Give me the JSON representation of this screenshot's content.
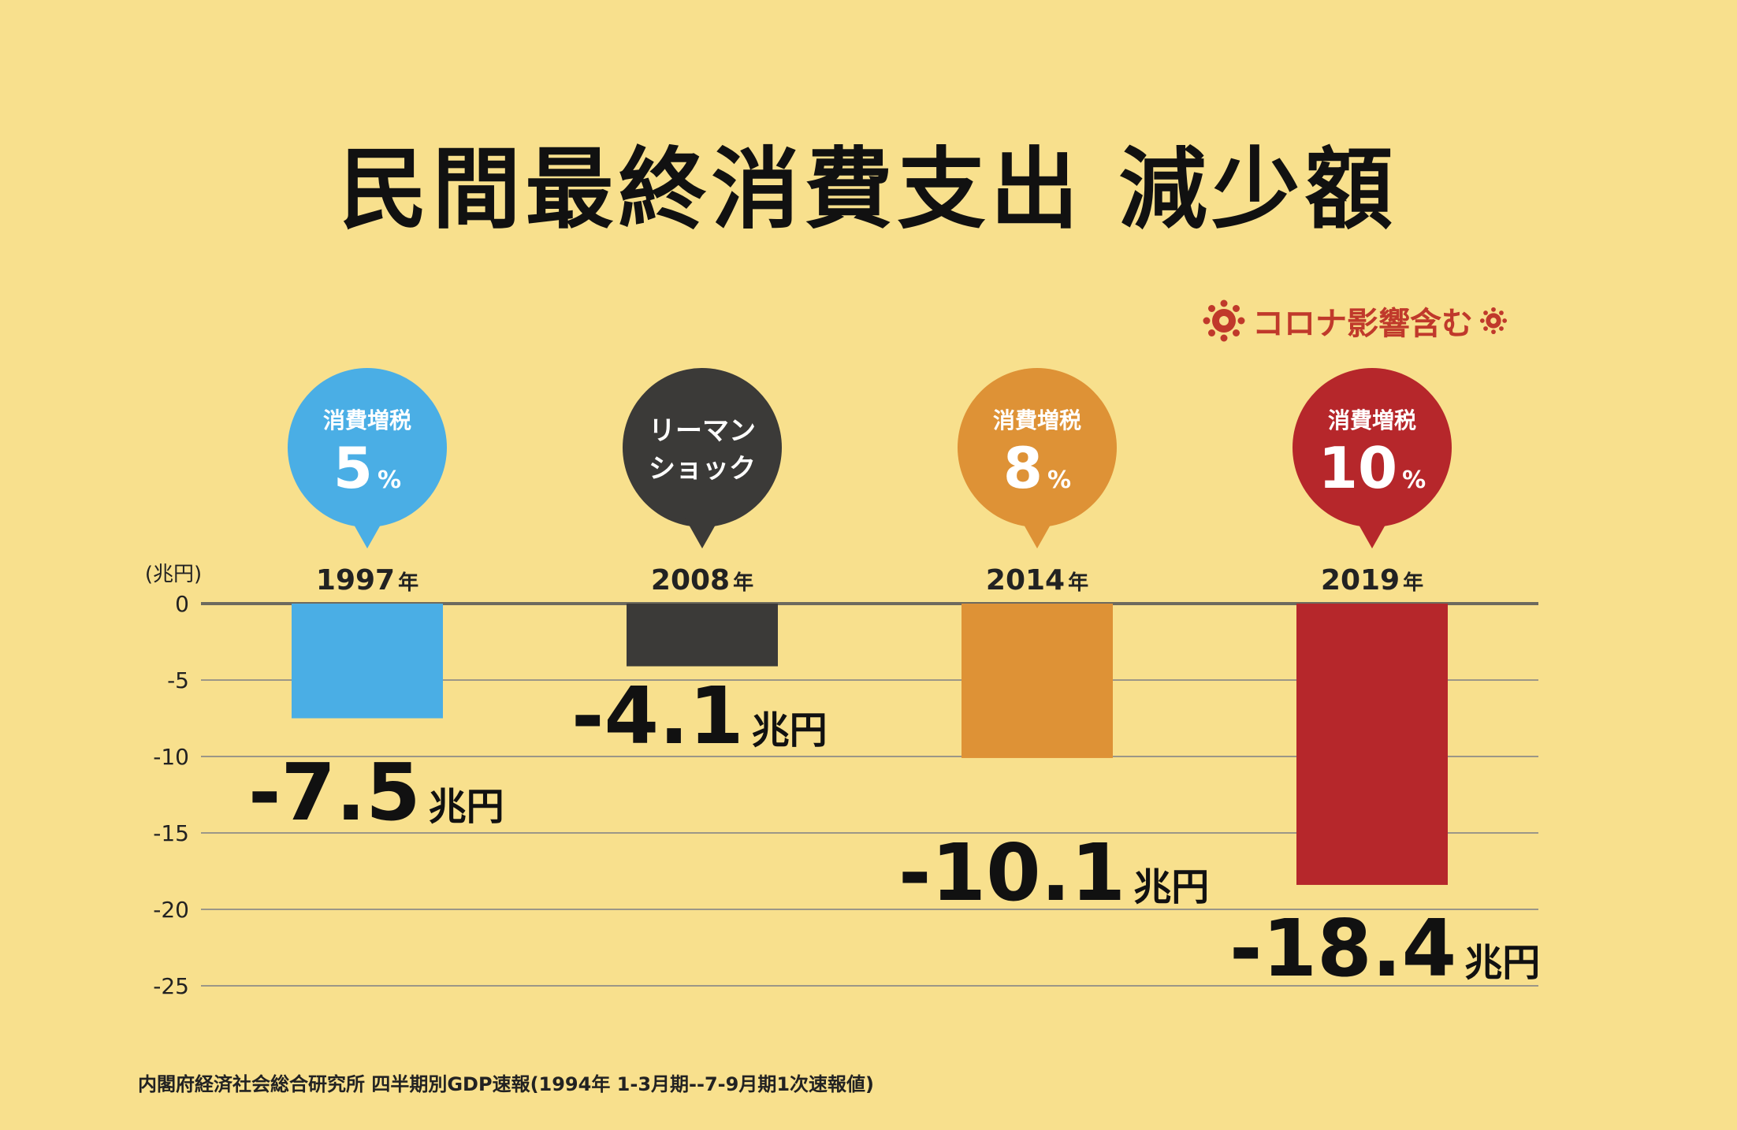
{
  "title": "民間最終消費支出 減少額",
  "note": "コロナ影響含む",
  "source": "内閣府経済社会総合研究所 四半期別GDP速報(1994年 1-3月期--7-9月期1次速報値)",
  "chart_data": {
    "type": "bar",
    "ylabel": "(兆円)",
    "ylim": [
      -25,
      0
    ],
    "yticks": [
      0,
      -5,
      -10,
      -15,
      -20,
      -25
    ],
    "ytick_labels": [
      "0",
      "-5",
      "-10",
      "-15",
      "-20",
      "-25"
    ],
    "grid": true,
    "value_unit": "兆円",
    "year_suffix": "年",
    "categories": [
      "1997",
      "2008",
      "2014",
      "2019"
    ],
    "values": [
      -7.5,
      -4.1,
      -10.1,
      -18.4
    ],
    "value_labels": [
      "-7.5",
      "-4.1",
      "-10.1",
      "-18.4"
    ],
    "colors": [
      "#4aaee5",
      "#3b3a38",
      "#de9236",
      "#b6272b"
    ],
    "events": [
      {
        "line1": "消費増税",
        "big": "5",
        "small": "%"
      },
      {
        "line1": "リーマン",
        "line2": "ショック"
      },
      {
        "line1": "消費増税",
        "big": "8",
        "small": "%"
      },
      {
        "line1": "消費増税",
        "big": "10",
        "small": "%"
      }
    ]
  }
}
